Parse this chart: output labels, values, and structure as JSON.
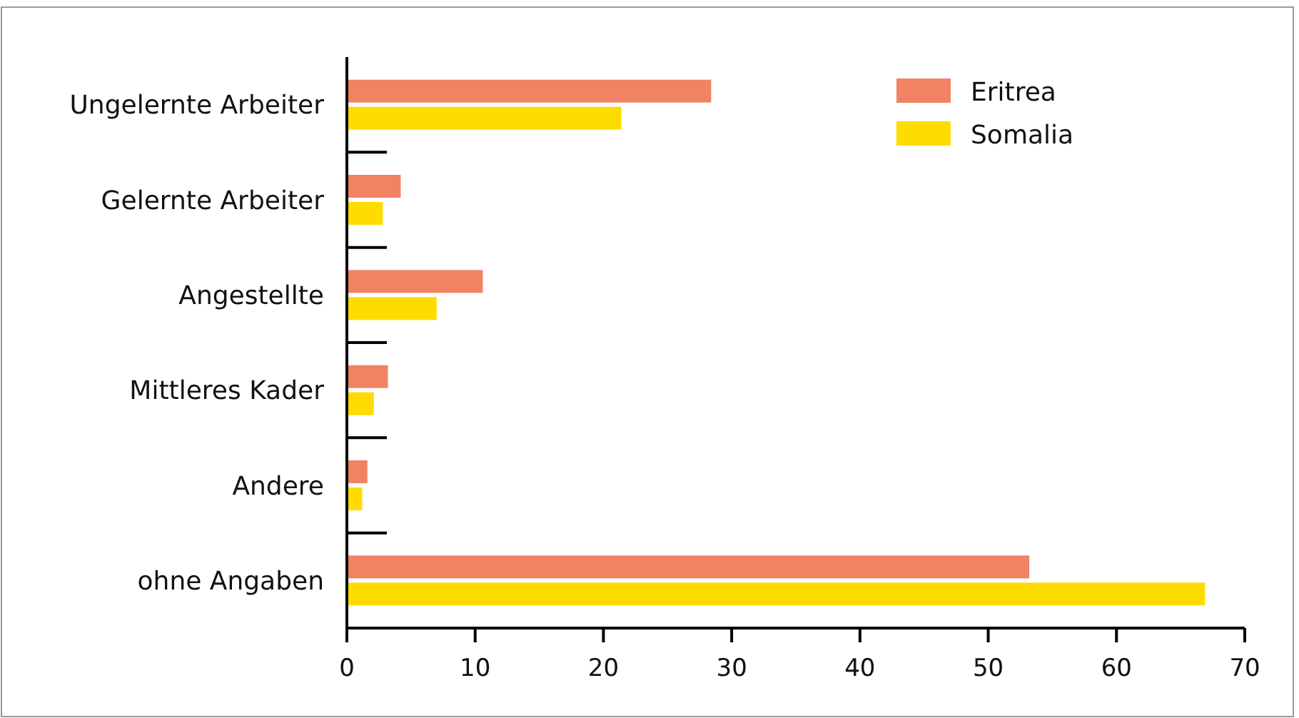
{
  "chart_data": {
    "type": "bar",
    "orientation": "horizontal",
    "categories": [
      "Ungelernte Arbeiter",
      "Gelernte Arbeiter",
      "Angestellte",
      "Mittleres Kader",
      "Andere",
      "ohne Angaben"
    ],
    "series": [
      {
        "name": "Eritrea",
        "color": "#ef8364",
        "values": [
          28.4,
          4.2,
          10.6,
          3.2,
          1.6,
          53.2
        ]
      },
      {
        "name": "Somalia",
        "color": "#ffdc00",
        "values": [
          21.4,
          2.8,
          7.0,
          2.1,
          1.2,
          66.9
        ]
      }
    ],
    "xlim": [
      0,
      70
    ],
    "xticks": [
      0,
      10,
      20,
      30,
      40,
      50,
      60,
      70
    ],
    "grid": false,
    "legend": "top right"
  }
}
